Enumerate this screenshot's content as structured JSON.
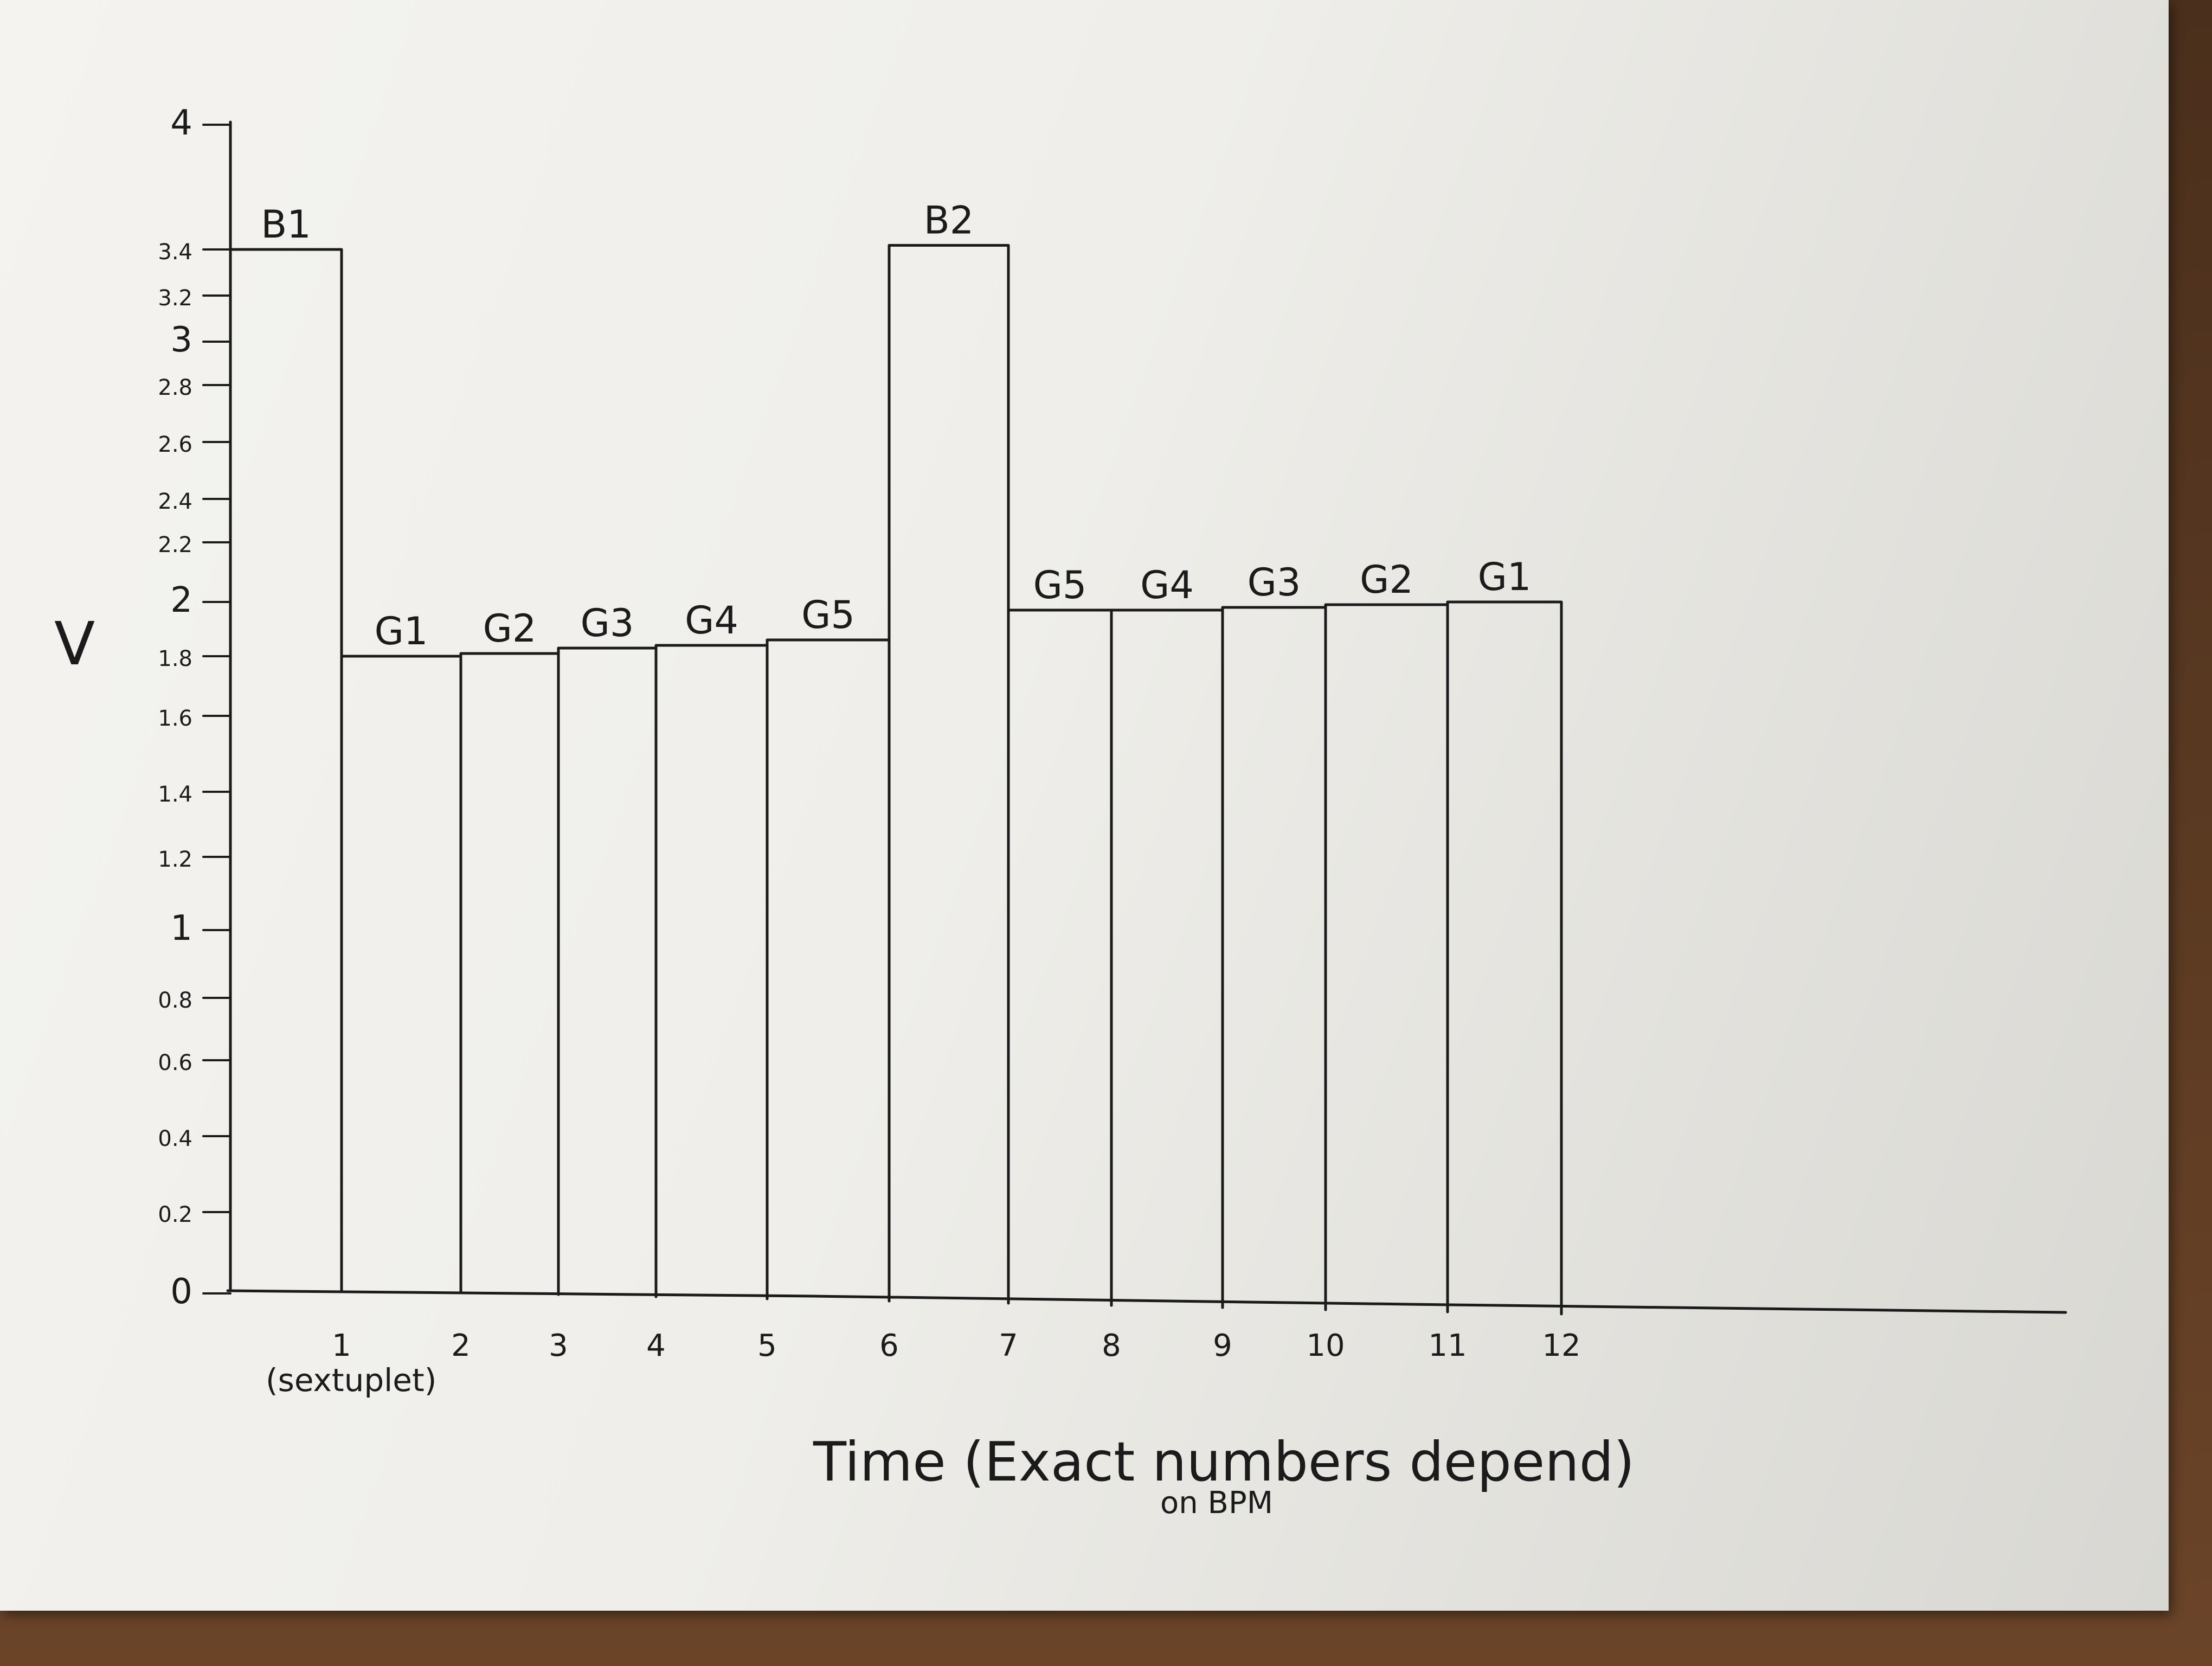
{
  "chart_data": {
    "type": "bar",
    "ylabel": "V",
    "xlabel": "Time (Exact numbers depend) on BPM",
    "ylim": [
      0,
      4
    ],
    "xlim": [
      0,
      12
    ],
    "grid": false,
    "y_ticks": [
      "0",
      "0.2",
      "0.4",
      "0.6",
      "0.8",
      "1",
      "1.2",
      "1.4",
      "1.6",
      "1.8",
      "2",
      "2.2",
      "2.4",
      "2.6",
      "2.8",
      "3",
      "3.2",
      "3.4",
      "4"
    ],
    "x_ticks": [
      "1",
      "2",
      "3",
      "4",
      "5",
      "6",
      "7",
      "8",
      "9",
      "10",
      "11",
      "12"
    ],
    "x_tick_note": "(sextuplet)",
    "bars": [
      {
        "label": "B1",
        "start": 0,
        "end": 1,
        "value": 3.4
      },
      {
        "label": "G1",
        "start": 1,
        "end": 2,
        "value": 1.8
      },
      {
        "label": "G2",
        "start": 2,
        "end": 3,
        "value": 1.81
      },
      {
        "label": "G3",
        "start": 3,
        "end": 4,
        "value": 1.83
      },
      {
        "label": "G4",
        "start": 4,
        "end": 5,
        "value": 1.84
      },
      {
        "label": "G5",
        "start": 5,
        "end": 6,
        "value": 1.86
      },
      {
        "label": "B2",
        "start": 6,
        "end": 7,
        "value": 3.42
      },
      {
        "label": "G5",
        "start": 7,
        "end": 8,
        "value": 1.97
      },
      {
        "label": "G4",
        "start": 8,
        "end": 9,
        "value": 1.97
      },
      {
        "label": "G3",
        "start": 9,
        "end": 10,
        "value": 1.98
      },
      {
        "label": "G2",
        "start": 10,
        "end": 11,
        "value": 1.99
      },
      {
        "label": "G1",
        "start": 11,
        "end": 12,
        "value": 2.0
      }
    ]
  }
}
